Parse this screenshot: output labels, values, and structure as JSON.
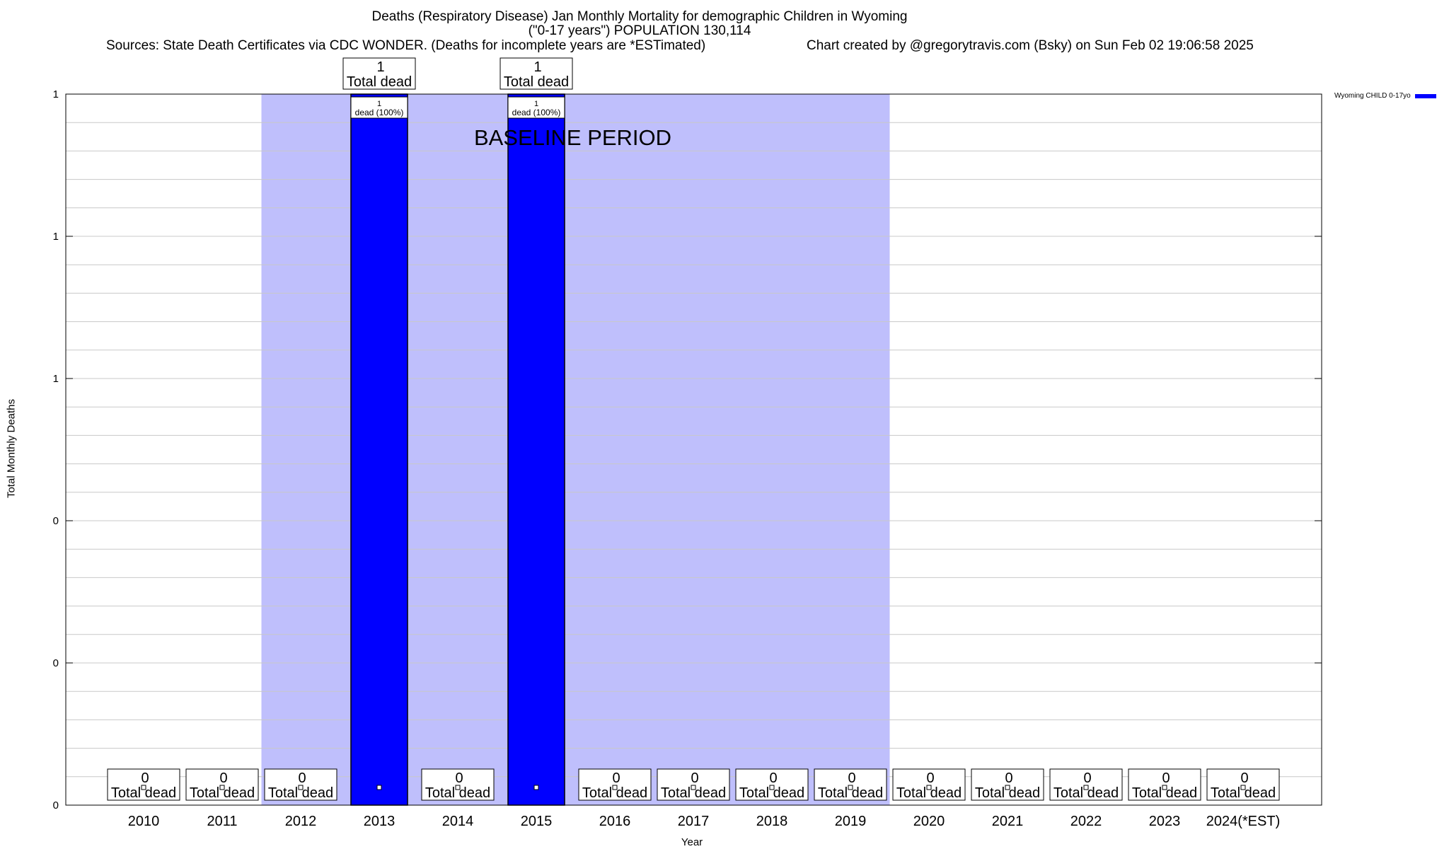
{
  "chart_data": {
    "type": "bar",
    "title_line1": "Deaths (Respiratory Disease) Jan Monthly Mortality for demographic Children in Wyoming",
    "title_line2": "(\"0-17 years\") POPULATION 130,114",
    "sources": "Sources: State Death Certificates via CDC WONDER. (Deaths for incomplete years are *ESTimated)",
    "credit": "Chart created by @gregorytravis.com (Bsky) on Sun Feb 02 19:06:58 2025",
    "xlabel": "Year",
    "ylabel": "Total Monthly Deaths",
    "categories": [
      "2010",
      "2011",
      "2012",
      "2013",
      "2014",
      "2015",
      "2016",
      "2017",
      "2018",
      "2019",
      "2020",
      "2021",
      "2022",
      "2023",
      "2024(*EST)"
    ],
    "series": [
      {
        "name": "Wyoming CHILD 0-17yo",
        "color": "#0000ff",
        "values": [
          0,
          0,
          0,
          1,
          0,
          1,
          0,
          0,
          0,
          0,
          0,
          0,
          0,
          0,
          0
        ]
      }
    ],
    "bar_labels": [
      {
        "value": "1",
        "text": "dead (100%)"
      },
      {
        "value": "1",
        "text": "dead (100%)"
      }
    ],
    "total_labels": {
      "values": [
        "0",
        "0",
        "0",
        "1",
        "0",
        "1",
        "0",
        "0",
        "0",
        "0",
        "0",
        "0",
        "0",
        "0",
        "0"
      ],
      "text": "Total dead"
    },
    "y_tick_labels": [
      "0",
      "0",
      "0",
      "1",
      "1",
      "1"
    ],
    "ylim": [
      0,
      1
    ],
    "grid": true,
    "baseline_period": {
      "label": "BASELINE PERIOD",
      "start": "2012",
      "end": "2019",
      "color": "#bfbffc"
    },
    "legend_position": "top-right"
  }
}
